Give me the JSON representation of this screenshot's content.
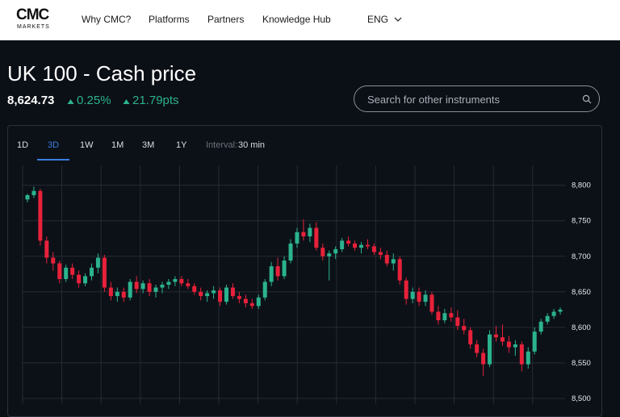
{
  "header": {
    "logo": "CMC",
    "logo_sub": "MARKETS",
    "nav": [
      "Why CMC?",
      "Platforms",
      "Partners",
      "Knowledge Hub"
    ],
    "language": "ENG"
  },
  "instrument": {
    "title": "UK 100 - Cash price",
    "price": "8,624.73",
    "change_pct": "0.25%",
    "change_pts": "21.79pts"
  },
  "search": {
    "placeholder": "Search for other instruments"
  },
  "tabs": [
    "1D",
    "3D",
    "1W",
    "1M",
    "3M",
    "1Y"
  ],
  "interval_label": "Interval:",
  "interval": "30 min",
  "chart_data": {
    "type": "candlestick",
    "open": [
      8780,
      8786,
      8792,
      8722,
      8698,
      8690,
      8668,
      8684,
      8674,
      8662,
      8672,
      8684,
      8698,
      8656,
      8644,
      8650,
      8642,
      8664,
      8654,
      8662,
      8650,
      8656,
      8660,
      8664,
      8668,
      8662,
      8658,
      8650,
      8644,
      8648,
      8652,
      8636,
      8656,
      8644,
      8640,
      8634,
      8630,
      8642,
      8664,
      8686,
      8672,
      8694,
      8718,
      8734,
      8728,
      8740,
      8712,
      8700,
      8704,
      8710,
      8722,
      8718,
      8712,
      8716,
      8714,
      8706,
      8702,
      8690,
      8696,
      8666,
      8640,
      8650,
      8636,
      8646,
      8622,
      8610,
      8620,
      8614,
      8602,
      8596,
      8576,
      8564,
      8548,
      8590,
      8586,
      8580,
      8572,
      8576,
      8548,
      8566,
      8594,
      8608,
      8616,
      8622
    ],
    "high": [
      8788,
      8798,
      8795,
      8728,
      8706,
      8694,
      8688,
      8690,
      8680,
      8676,
      8690,
      8704,
      8702,
      8664,
      8656,
      8656,
      8668,
      8672,
      8666,
      8668,
      8660,
      8664,
      8668,
      8672,
      8672,
      8668,
      8662,
      8656,
      8652,
      8658,
      8656,
      8660,
      8662,
      8650,
      8646,
      8640,
      8646,
      8668,
      8692,
      8698,
      8700,
      8724,
      8740,
      8752,
      8746,
      8748,
      8718,
      8708,
      8714,
      8726,
      8728,
      8722,
      8720,
      8724,
      8718,
      8712,
      8708,
      8704,
      8700,
      8670,
      8656,
      8656,
      8652,
      8650,
      8630,
      8626,
      8628,
      8624,
      8612,
      8600,
      8582,
      8570,
      8596,
      8602,
      8604,
      8588,
      8582,
      8580,
      8572,
      8600,
      8612,
      8620,
      8626,
      8628
    ],
    "low": [
      8776,
      8782,
      8715,
      8690,
      8680,
      8662,
      8664,
      8668,
      8656,
      8658,
      8666,
      8676,
      8650,
      8638,
      8636,
      8636,
      8638,
      8648,
      8648,
      8644,
      8642,
      8648,
      8654,
      8658,
      8658,
      8654,
      8646,
      8638,
      8636,
      8640,
      8630,
      8632,
      8640,
      8634,
      8628,
      8626,
      8626,
      8638,
      8658,
      8666,
      8668,
      8690,
      8712,
      8722,
      8720,
      8708,
      8694,
      8666,
      8696,
      8706,
      8714,
      8708,
      8704,
      8710,
      8702,
      8696,
      8686,
      8680,
      8660,
      8632,
      8634,
      8630,
      8630,
      8618,
      8604,
      8606,
      8608,
      8596,
      8590,
      8570,
      8558,
      8532,
      8544,
      8580,
      8574,
      8564,
      8560,
      8538,
      8542,
      8562,
      8590,
      8604,
      8612,
      8618
    ],
    "close": [
      8786,
      8792,
      8722,
      8698,
      8690,
      8668,
      8684,
      8674,
      8662,
      8672,
      8684,
      8698,
      8656,
      8644,
      8650,
      8642,
      8664,
      8654,
      8662,
      8650,
      8656,
      8660,
      8664,
      8668,
      8662,
      8658,
      8650,
      8644,
      8648,
      8652,
      8636,
      8656,
      8644,
      8640,
      8634,
      8630,
      8642,
      8664,
      8686,
      8672,
      8694,
      8718,
      8734,
      8728,
      8740,
      8712,
      8700,
      8704,
      8710,
      8722,
      8718,
      8712,
      8716,
      8714,
      8706,
      8702,
      8690,
      8696,
      8666,
      8640,
      8650,
      8636,
      8646,
      8622,
      8610,
      8620,
      8614,
      8602,
      8596,
      8576,
      8564,
      8548,
      8590,
      8586,
      8580,
      8572,
      8576,
      8548,
      8566,
      8594,
      8608,
      8616,
      8622,
      8625
    ],
    "ylim": [
      8492,
      8828
    ],
    "yticks": [
      {
        "value": 8500,
        "label": "8,500"
      },
      {
        "value": 8550,
        "label": "8,550"
      },
      {
        "value": 8600,
        "label": "8,600"
      },
      {
        "value": 8650,
        "label": "8,650"
      },
      {
        "value": 8700,
        "label": "8,700"
      },
      {
        "value": 8750,
        "label": "8,750"
      },
      {
        "value": 8800,
        "label": "8,800"
      }
    ],
    "up_color": "#2bb38e",
    "down_color": "#e8213a",
    "grid": true
  }
}
